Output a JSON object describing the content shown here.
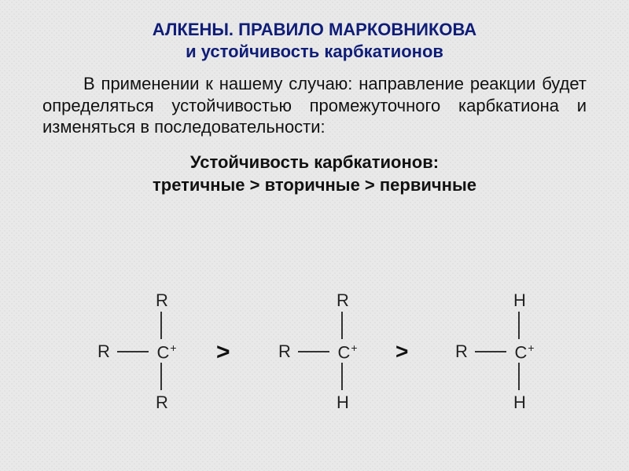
{
  "title_line1": "АЛКЕНЫ. ПРАВИЛО МАРКОВНИКОВА",
  "title_line2": "и устойчивость карбкатионов",
  "title_color": "#0f1d78",
  "intro_text": "В применении к нашему случаю: направление реакции будет определяться устойчивостью промежуточного карбкатиона и изменяться в последовательности:",
  "sub_line1": "Устойчивость карбкатионов:",
  "sub_line2": "третичные  >  вторичные  >  первичные",
  "body_color": "#111111",
  "background_color": "#e9e9e9",
  "carbocations": {
    "center_label": "C",
    "charge": "+",
    "gt_symbol": ">",
    "species": [
      {
        "left": "R",
        "top": "R",
        "bottom": "R"
      },
      {
        "left": "R",
        "top": "R",
        "bottom": "H"
      },
      {
        "left": "R",
        "top": "H",
        "bottom": "H"
      }
    ],
    "bond_color": "#333333",
    "atom_fontsize": 22,
    "gt_fontsize": 30
  }
}
